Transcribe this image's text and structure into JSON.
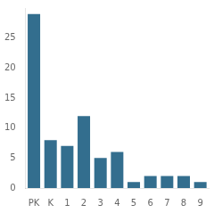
{
  "chart_data": {
    "type": "bar",
    "categories": [
      "PK",
      "K",
      "1",
      "2",
      "3",
      "4",
      "5",
      "6",
      "7",
      "8",
      "9"
    ],
    "values": [
      29,
      8,
      7,
      12,
      5,
      6,
      1,
      2,
      2,
      2,
      1
    ],
    "color": "#336e8e",
    "ylim": [
      0,
      30
    ],
    "yticks": [
      0,
      5,
      10,
      15,
      20,
      25
    ],
    "grid": false
  }
}
